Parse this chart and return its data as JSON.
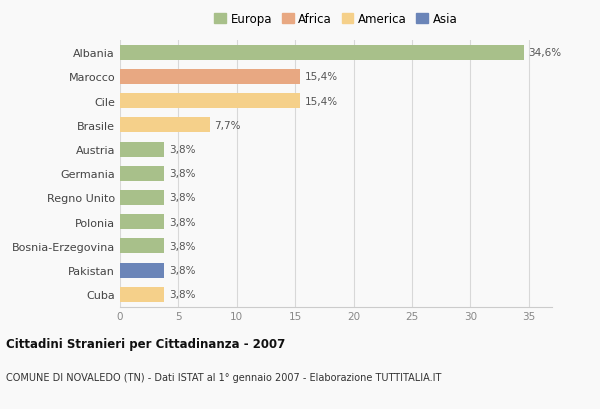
{
  "countries": [
    "Albania",
    "Marocco",
    "Cile",
    "Brasile",
    "Austria",
    "Germania",
    "Regno Unito",
    "Polonia",
    "Bosnia-Erzegovina",
    "Pakistan",
    "Cuba"
  ],
  "values": [
    34.6,
    15.4,
    15.4,
    7.7,
    3.8,
    3.8,
    3.8,
    3.8,
    3.8,
    3.8,
    3.8
  ],
  "labels": [
    "34,6%",
    "15,4%",
    "15,4%",
    "7,7%",
    "3,8%",
    "3,8%",
    "3,8%",
    "3,8%",
    "3,8%",
    "3,8%",
    "3,8%"
  ],
  "colors": [
    "#a8c08a",
    "#e8a882",
    "#f5d08a",
    "#f5d08a",
    "#a8c08a",
    "#a8c08a",
    "#a8c08a",
    "#a8c08a",
    "#a8c08a",
    "#6b85b8",
    "#f5d08a"
  ],
  "legend_labels": [
    "Europa",
    "Africa",
    "America",
    "Asia"
  ],
  "legend_colors": [
    "#a8c08a",
    "#e8a882",
    "#f5d08a",
    "#6b85b8"
  ],
  "title_bold": "Cittadini Stranieri per Cittadinanza - 2007",
  "subtitle": "COMUNE DI NOVALEDO (TN) - Dati ISTAT al 1° gennaio 2007 - Elaborazione TUTTITALIA.IT",
  "xlim": [
    0,
    37
  ],
  "xticks": [
    0,
    5,
    10,
    15,
    20,
    25,
    30,
    35
  ],
  "bg_color": "#f9f9f9",
  "grid_color": "#d8d8d8"
}
